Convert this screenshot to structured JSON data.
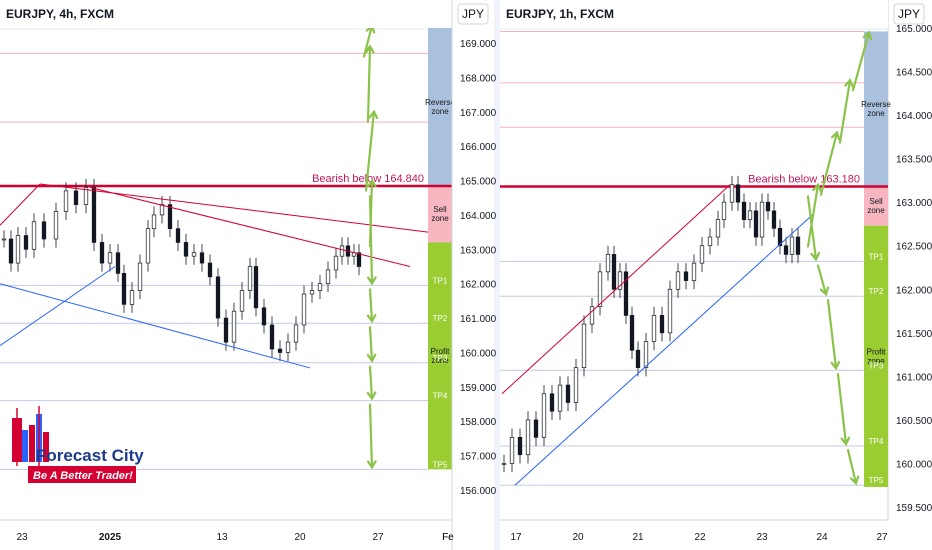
{
  "chart_data": [
    {
      "type": "candlestick",
      "title": "EURJPY, 4h, FXCM",
      "currency": "JPY",
      "x_ticks": [
        "23",
        "2025",
        "13",
        "20",
        "27",
        "Fe"
      ],
      "y_ticks": [
        "156.000",
        "157.000",
        "158.000",
        "159.000",
        "160.000",
        "161.000",
        "162.000",
        "163.000",
        "164.000",
        "165.000",
        "166.000",
        "167.000",
        "168.000",
        "169.000"
      ],
      "ylim": [
        155.6,
        169.6
      ],
      "annotation": "Bearish below 164.840",
      "key_level": 164.84,
      "zones": [
        {
          "name": "Reverse zone",
          "lines": [
            "Reverse",
            "zone"
          ],
          "from": 164.84,
          "to": 169.45,
          "color": "#a9c1dc"
        },
        {
          "name": "Sell zone",
          "lines": [
            "Sell",
            "zone"
          ],
          "from": 163.2,
          "to": 164.84,
          "color": "#f7b6c0"
        },
        {
          "name": "Profit zone",
          "lines": [
            "Profit",
            "zone"
          ],
          "from": 156.6,
          "to": 163.2,
          "color": "#9acd32"
        }
      ],
      "targets": [
        {
          "label": "TP1",
          "value": 161.95
        },
        {
          "label": "TP2",
          "value": 160.85
        },
        {
          "label": "TP3",
          "value": 159.7
        },
        {
          "label": "TP4",
          "value": 158.6
        },
        {
          "label": "TP5",
          "value": 156.6
        }
      ],
      "resistance_levels": [
        166.7,
        168.7,
        169.45
      ],
      "arrows_up": [
        165.0,
        167.0,
        168.9,
        169.5
      ],
      "price_path": [
        [
          0,
          163.3
        ],
        [
          7,
          162.6
        ],
        [
          14,
          163.4
        ],
        [
          22,
          163.0
        ],
        [
          30,
          163.8
        ],
        [
          40,
          163.3
        ],
        [
          52,
          164.1
        ],
        [
          62,
          164.7
        ],
        [
          72,
          164.3
        ],
        [
          82,
          164.8
        ],
        [
          90,
          163.2
        ],
        [
          98,
          162.6
        ],
        [
          106,
          162.9
        ],
        [
          114,
          162.3
        ],
        [
          120,
          161.4
        ],
        [
          128,
          161.8
        ],
        [
          136,
          162.6
        ],
        [
          144,
          163.6
        ],
        [
          150,
          164.0
        ],
        [
          158,
          164.3
        ],
        [
          166,
          163.6
        ],
        [
          174,
          163.2
        ],
        [
          182,
          162.8
        ],
        [
          190,
          162.9
        ],
        [
          198,
          162.6
        ],
        [
          206,
          162.2
        ],
        [
          214,
          161.0
        ],
        [
          222,
          160.3
        ],
        [
          230,
          161.2
        ],
        [
          238,
          161.8
        ],
        [
          246,
          162.5
        ],
        [
          252,
          161.3
        ],
        [
          260,
          160.8
        ],
        [
          268,
          160.1
        ],
        [
          276,
          160.0
        ],
        [
          284,
          160.3
        ],
        [
          292,
          160.8
        ],
        [
          300,
          161.7
        ],
        [
          308,
          161.8
        ],
        [
          316,
          162.0
        ],
        [
          324,
          162.4
        ],
        [
          332,
          162.8
        ],
        [
          338,
          163.1
        ],
        [
          344,
          162.8
        ],
        [
          350,
          162.9
        ],
        [
          355,
          162.5
        ]
      ]
    },
    {
      "type": "candlestick",
      "title": "EURJPY, 1h, FXCM",
      "currency": "JPY",
      "x_ticks": [
        "17",
        "20",
        "21",
        "22",
        "23",
        "24",
        "27"
      ],
      "y_ticks": [
        "159.500",
        "160.000",
        "160.500",
        "161.000",
        "161.500",
        "162.000",
        "162.500",
        "163.000",
        "163.500",
        "164.000",
        "164.500",
        "165.000"
      ],
      "ylim": [
        159.35,
        165.1
      ],
      "annotation": "Bearish below 163.180",
      "key_level": 163.18,
      "zones": [
        {
          "name": "Reverse zone",
          "lines": [
            "Reverse",
            "zone"
          ],
          "from": 163.18,
          "to": 164.96,
          "color": "#a9c1dc"
        },
        {
          "name": "Sell zone",
          "lines": [
            "Sell",
            "zone"
          ],
          "from": 162.73,
          "to": 163.18,
          "color": "#f7b6c0"
        },
        {
          "name": "Profit zone",
          "lines": [
            "Profit",
            "zone"
          ],
          "from": 159.73,
          "to": 162.73,
          "color": "#9acd32"
        }
      ],
      "targets": [
        {
          "label": "TP1",
          "value": 162.32
        },
        {
          "label": "TP2",
          "value": 161.92
        },
        {
          "label": "TP3",
          "value": 161.07
        },
        {
          "label": "TP4",
          "value": 160.2
        },
        {
          "label": "TP5",
          "value": 159.75
        }
      ],
      "resistance_levels": [
        163.86,
        164.37,
        164.96
      ],
      "arrows_up": [
        163.2,
        163.8,
        164.4,
        164.95
      ],
      "price_path": [
        [
          0,
          160.0
        ],
        [
          8,
          160.3
        ],
        [
          16,
          160.1
        ],
        [
          24,
          160.5
        ],
        [
          32,
          160.3
        ],
        [
          40,
          160.8
        ],
        [
          48,
          160.6
        ],
        [
          56,
          160.9
        ],
        [
          64,
          160.7
        ],
        [
          72,
          161.1
        ],
        [
          80,
          161.6
        ],
        [
          88,
          161.8
        ],
        [
          96,
          162.2
        ],
        [
          104,
          162.4
        ],
        [
          110,
          162.0
        ],
        [
          116,
          162.2
        ],
        [
          122,
          161.7
        ],
        [
          128,
          161.3
        ],
        [
          134,
          161.1
        ],
        [
          142,
          161.4
        ],
        [
          150,
          161.7
        ],
        [
          158,
          161.5
        ],
        [
          166,
          162.0
        ],
        [
          174,
          162.2
        ],
        [
          182,
          162.1
        ],
        [
          190,
          162.3
        ],
        [
          198,
          162.5
        ],
        [
          206,
          162.6
        ],
        [
          214,
          162.8
        ],
        [
          220,
          163.0
        ],
        [
          228,
          163.2
        ],
        [
          234,
          163.0
        ],
        [
          240,
          162.8
        ],
        [
          246,
          162.9
        ],
        [
          252,
          162.6
        ],
        [
          258,
          163.0
        ],
        [
          264,
          162.9
        ],
        [
          270,
          162.7
        ],
        [
          276,
          162.5
        ],
        [
          282,
          162.4
        ],
        [
          288,
          162.6
        ],
        [
          294,
          162.4
        ]
      ]
    }
  ],
  "brand": {
    "name": "Forecast City",
    "tagline": "Be A Better Trader!"
  }
}
